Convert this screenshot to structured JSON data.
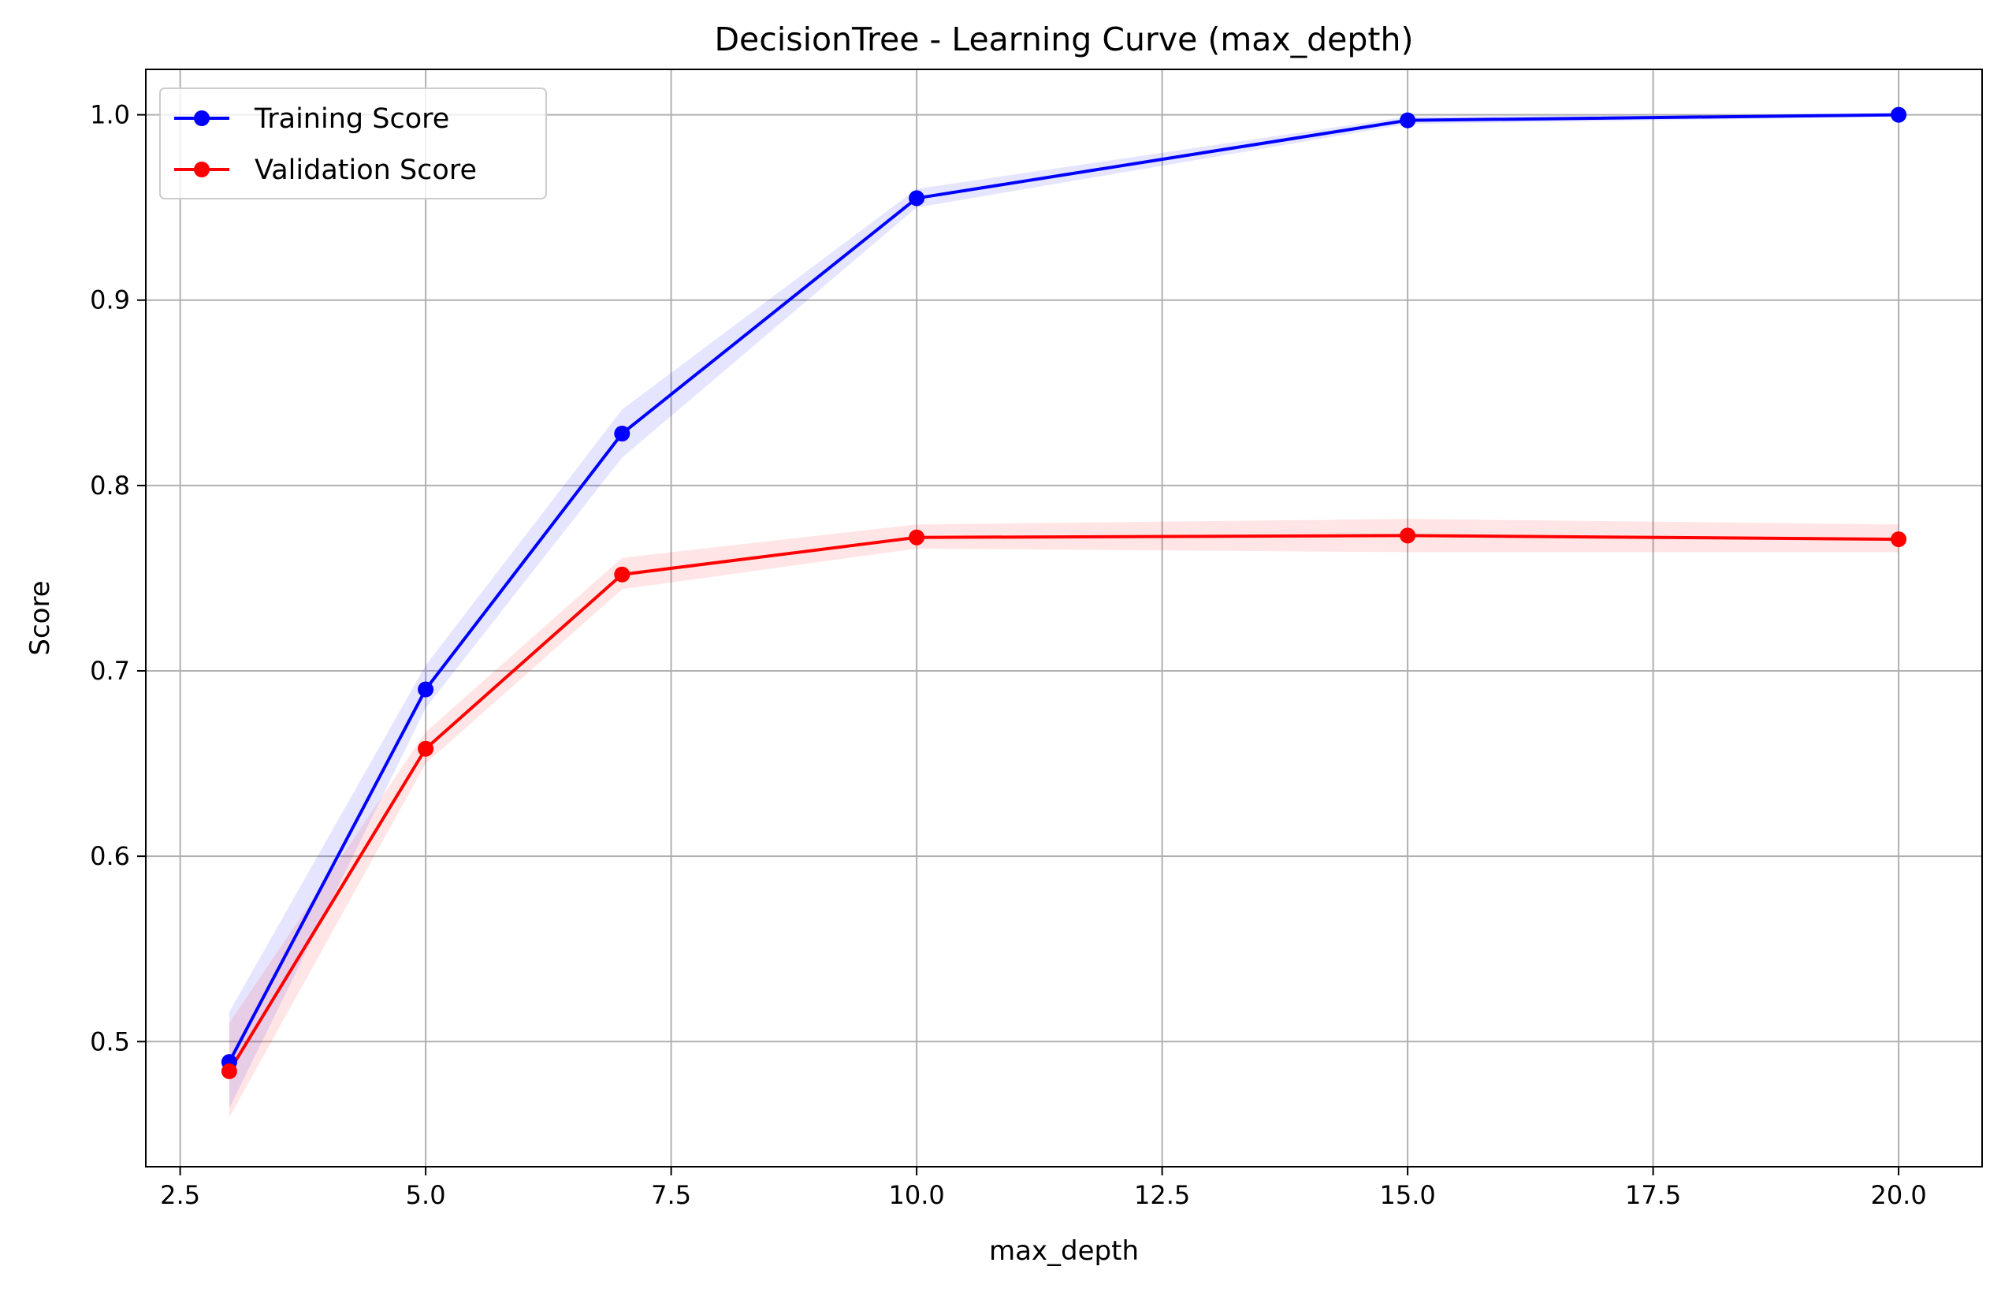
{
  "chart_data": {
    "type": "line",
    "title": "DecisionTree - Learning Curve (max_depth)",
    "xlabel": "max_depth",
    "ylabel": "Score",
    "xlim": [
      2.15,
      20.85
    ],
    "ylim": [
      0.4325,
      1.0245
    ],
    "x_ticks": [
      2.5,
      5.0,
      7.5,
      10.0,
      12.5,
      15.0,
      17.5,
      20.0
    ],
    "x_tick_labels": [
      "2.5",
      "5.0",
      "7.5",
      "10.0",
      "12.5",
      "15.0",
      "17.5",
      "20.0"
    ],
    "y_ticks": [
      0.5,
      0.6,
      0.7,
      0.8,
      0.9,
      1.0
    ],
    "y_tick_labels": [
      "0.5",
      "0.6",
      "0.7",
      "0.8",
      "0.9",
      "1.0"
    ],
    "grid": true,
    "legend_position": "upper-left",
    "x": [
      3,
      5,
      7,
      10,
      15,
      20
    ],
    "series": [
      {
        "name": "Training Score",
        "color": "#0000ff",
        "band_color": "#0000ff",
        "values": [
          0.489,
          0.69,
          0.828,
          0.955,
          0.997,
          1.0
        ],
        "band_lower": [
          0.464,
          0.68,
          0.815,
          0.95,
          0.995,
          0.999
        ],
        "band_upper": [
          0.516,
          0.703,
          0.841,
          0.96,
          0.999,
          1.0
        ]
      },
      {
        "name": "Validation Score",
        "color": "#ff0000",
        "band_color": "#ff0000",
        "values": [
          0.484,
          0.658,
          0.752,
          0.772,
          0.773,
          0.771
        ],
        "band_lower": [
          0.459,
          0.65,
          0.744,
          0.766,
          0.764,
          0.764
        ],
        "band_upper": [
          0.51,
          0.667,
          0.761,
          0.779,
          0.782,
          0.779
        ]
      }
    ]
  }
}
